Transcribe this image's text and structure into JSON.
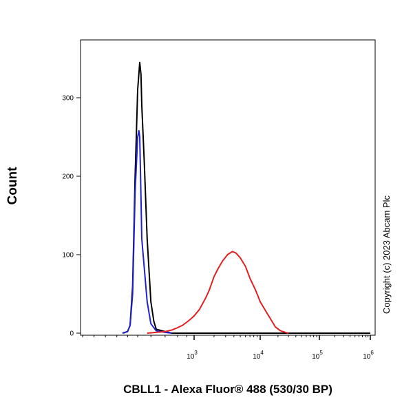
{
  "chart_data": {
    "type": "line",
    "title": "",
    "xlabel": "CBLL1 - Alexa Fluor® 488 (530/30 BP)",
    "ylabel": "Count",
    "x_scale": "biexponential",
    "ylim": [
      0,
      360
    ],
    "xlim": [
      -1000,
      1000000
    ],
    "y_ticks": [
      0,
      100,
      200,
      300
    ],
    "x_ticks": [
      {
        "value": 1000,
        "base": "10",
        "exp": "3"
      },
      {
        "value": 10000,
        "base": "10",
        "exp": "4"
      },
      {
        "value": 100000,
        "base": "10",
        "exp": "5"
      },
      {
        "value": 1000000,
        "base": "10",
        "exp": "6"
      }
    ],
    "grid": false,
    "legend": "none",
    "series": [
      {
        "color": "#000000",
        "x": [
          -300,
          -200,
          -150,
          -100,
          -50,
          0,
          50,
          80,
          100,
          120,
          150,
          200,
          250,
          300,
          400,
          500,
          700,
          1000,
          2000,
          10000,
          1000000
        ],
        "y": [
          0,
          2,
          10,
          60,
          200,
          310,
          345,
          330,
          290,
          220,
          120,
          40,
          15,
          5,
          2,
          0,
          0,
          0,
          0,
          0,
          0
        ]
      },
      {
        "color": "#2222cc",
        "x": [
          -300,
          -200,
          -150,
          -100,
          -50,
          0,
          30,
          50,
          70,
          100,
          150,
          200,
          300,
          400,
          500
        ],
        "y": [
          0,
          2,
          10,
          50,
          180,
          250,
          258,
          250,
          200,
          120,
          40,
          12,
          3,
          1,
          0
        ]
      },
      {
        "color": "#e02020",
        "x": [
          150,
          300,
          400,
          500,
          600,
          700,
          800,
          900,
          1000,
          1200,
          1500,
          1700,
          2000,
          2300,
          2700,
          3200,
          3800,
          4300,
          5000,
          6000,
          7000,
          8500,
          10000,
          12000,
          15000,
          18000,
          22000,
          27000,
          30000
        ],
        "y": [
          0,
          1,
          2,
          4,
          7,
          10,
          14,
          18,
          22,
          30,
          45,
          55,
          72,
          82,
          92,
          100,
          104,
          102,
          96,
          85,
          70,
          55,
          40,
          30,
          18,
          8,
          3,
          1,
          0
        ]
      }
    ]
  },
  "watermark": "Copyright (c) 2023 Abcam Plc",
  "colors": {
    "frame": "#000000",
    "background": "#ffffff"
  }
}
